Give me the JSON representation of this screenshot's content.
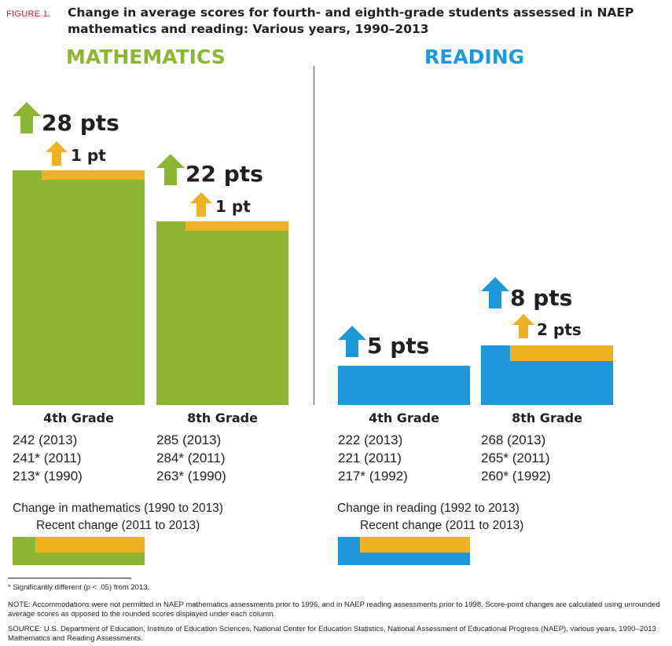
{
  "figure_label": "FIGURE 1.",
  "title": "Change in average scores for fourth- and eighth-grade students assessed in NAEP mathematics and reading: Various years, 1990–2013",
  "colors": {
    "math": "#8cb531",
    "reading": "#1e98d9",
    "recent": "#f0b122",
    "text": "#231f20",
    "figure_label": "#d6202a"
  },
  "chart_data": [
    {
      "type": "bar",
      "title": "MATHEMATICS",
      "categories": [
        "4th Grade",
        "8th Grade"
      ],
      "series": [
        {
          "name": "Change in mathematics (1990 to 2013)",
          "values": [
            28,
            22
          ]
        },
        {
          "name": "Recent change (2011 to 2013)",
          "values": [
            1,
            1
          ]
        }
      ],
      "change_labels": [
        "28 pts",
        "22 pts"
      ],
      "recent_labels": [
        "1 pt",
        "1 pt"
      ],
      "scores": [
        [
          "242 (2013)",
          "241* (2011)",
          "213* (1990)"
        ],
        [
          "285 (2013)",
          "284* (2011)",
          "263* (1990)"
        ]
      ],
      "legend": {
        "main": "Change in mathematics (1990 to 2013)",
        "recent": "Recent change (2011 to 2013)"
      }
    },
    {
      "type": "bar",
      "title": "READING",
      "categories": [
        "4th Grade",
        "8th Grade"
      ],
      "series": [
        {
          "name": "Change in reading (1992 to 2013)",
          "values": [
            5,
            8
          ]
        },
        {
          "name": "Recent change (2011 to 2013)",
          "values": [
            0,
            2
          ]
        }
      ],
      "change_labels": [
        "5 pts",
        "8 pts"
      ],
      "recent_labels": [
        "",
        "2 pts"
      ],
      "scores": [
        [
          "222 (2013)",
          "221 (2011)",
          "217* (1992)"
        ],
        [
          "268 (2013)",
          "265* (2011)",
          "260* (1992)"
        ]
      ],
      "legend": {
        "main": "Change in reading (1992 to 2013)",
        "recent": "Recent change (2011 to 2013)"
      }
    }
  ],
  "footnotes": {
    "significance": "* Significantly different (p < .05) from 2013.",
    "note": "NOTE: Accommodations were not permitted in NAEP mathematics assessments prior to 1996, and in NAEP reading assessments prior to 1998. Score-point changes are calculated using unrounded average scores as opposed to the rounded scores displayed under each column.",
    "source": "SOURCE: U.S. Department of Education, Institute of Education Sciences, National Center for Education Statistics, National Assessment of Educational Progress (NAEP), various years, 1990–2013 Mathematics and Reading Assessments."
  }
}
